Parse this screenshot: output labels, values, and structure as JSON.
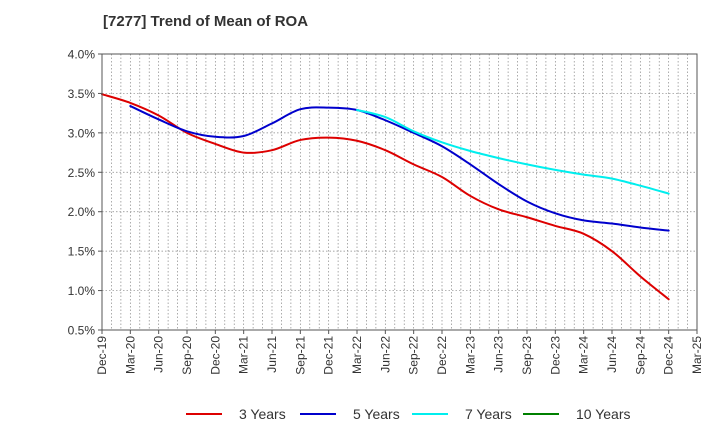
{
  "chart_data": {
    "type": "line",
    "title": "[7277]  Trend of Mean of ROA",
    "xlabel": "",
    "ylabel": "",
    "ylim": [
      0.5,
      4.0
    ],
    "yticks": [
      0.5,
      1.0,
      1.5,
      2.0,
      2.5,
      3.0,
      3.5,
      4.0
    ],
    "ytick_labels": [
      "0.5%",
      "1.0%",
      "1.5%",
      "2.0%",
      "2.5%",
      "3.0%",
      "3.5%",
      "4.0%"
    ],
    "x_tick_labels": [
      "Dec-19",
      "Mar-20",
      "Jun-20",
      "Sep-20",
      "Dec-20",
      "Mar-21",
      "Jun-21",
      "Sep-21",
      "Dec-21",
      "Mar-22",
      "Jun-22",
      "Sep-22",
      "Dec-22",
      "Mar-23",
      "Jun-23",
      "Sep-23",
      "Dec-23",
      "Mar-24",
      "Jun-24",
      "Sep-24",
      "Dec-24",
      "Mar-25"
    ],
    "grid": true,
    "legend_position": "bottom",
    "series": [
      {
        "name": "3 Years",
        "color": "#dd0000",
        "start_index": 0,
        "values": [
          3.49,
          3.38,
          3.22,
          3.0,
          2.86,
          2.75,
          2.78,
          2.91,
          2.94,
          2.9,
          2.78,
          2.6,
          2.44,
          2.2,
          2.03,
          1.93,
          1.82,
          1.72,
          1.5,
          1.18,
          0.89
        ]
      },
      {
        "name": "5 Years",
        "color": "#0000cc",
        "start_index": 1,
        "values": [
          3.34,
          3.17,
          3.02,
          2.95,
          2.96,
          3.12,
          3.3,
          3.32,
          3.29,
          3.16,
          3.0,
          2.83,
          2.6,
          2.35,
          2.13,
          1.98,
          1.89,
          1.85,
          1.8,
          1.76
        ]
      },
      {
        "name": "7 Years",
        "color": "#00eeee",
        "start_index": 9,
        "values": [
          3.29,
          3.2,
          3.02,
          2.88,
          2.77,
          2.68,
          2.6,
          2.53,
          2.47,
          2.42,
          2.33,
          2.23
        ]
      },
      {
        "name": "10 Years",
        "color": "#008000",
        "start_index": 0,
        "values": []
      }
    ]
  }
}
